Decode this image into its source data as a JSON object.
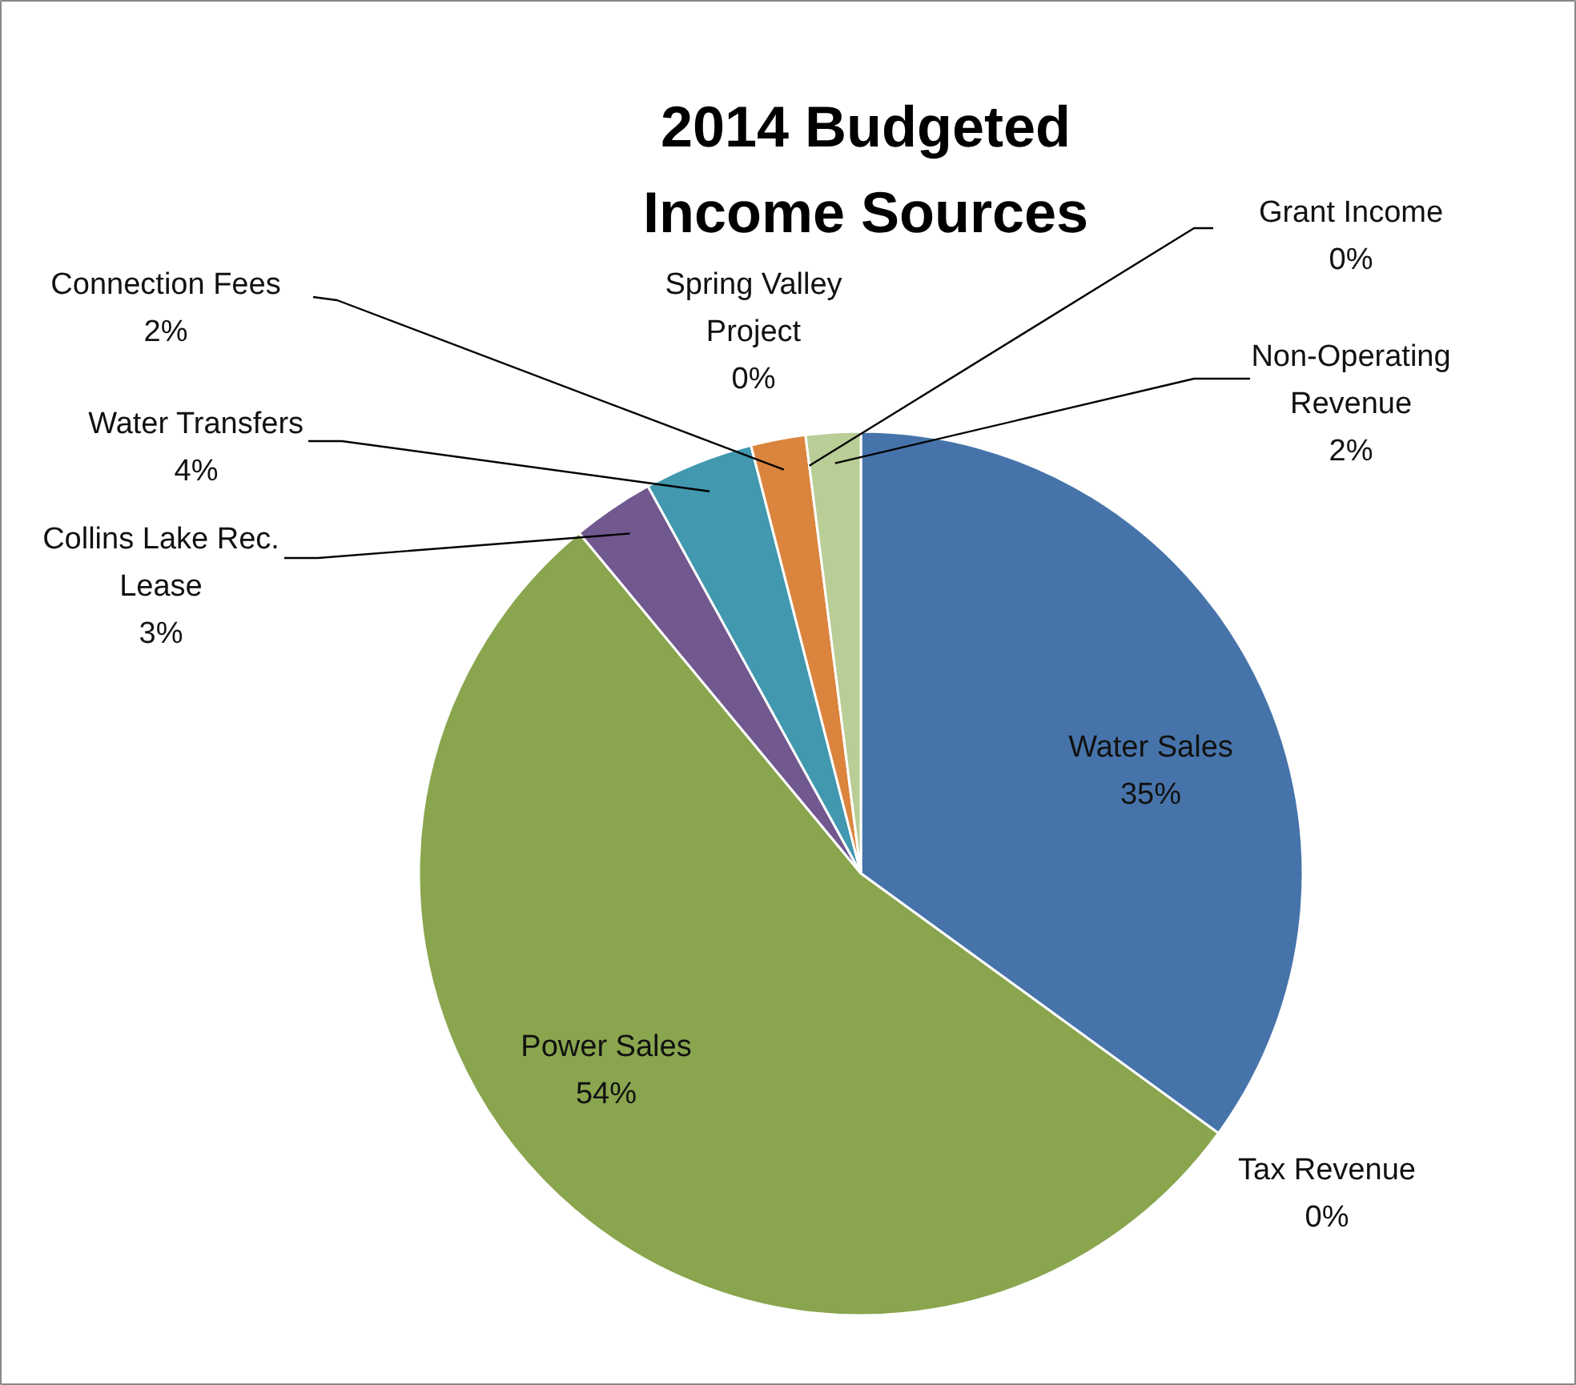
{
  "chart_data": {
    "type": "pie",
    "title": "2014 Budgeted Income Sources",
    "categories": [
      "Water Sales",
      "Tax Revenue",
      "Power Sales",
      "Collins Lake Rec. Lease",
      "Water Transfers",
      "Connection Fees",
      "Spring Valley Project",
      "Grant Income",
      "Non-Operating Revenue"
    ],
    "values": [
      35,
      0,
      54,
      3,
      4,
      2,
      0,
      0,
      2
    ],
    "value_labels": [
      "35%",
      "0%",
      "54%",
      "3%",
      "4%",
      "2%",
      "0%",
      "0%",
      "2%"
    ],
    "colors": [
      "#4674aa",
      "#aa4643",
      "#89a54e",
      "#71588f",
      "#4198af",
      "#db843d",
      "#93a9cf",
      "#d19392",
      "#b9cd96"
    ]
  }
}
